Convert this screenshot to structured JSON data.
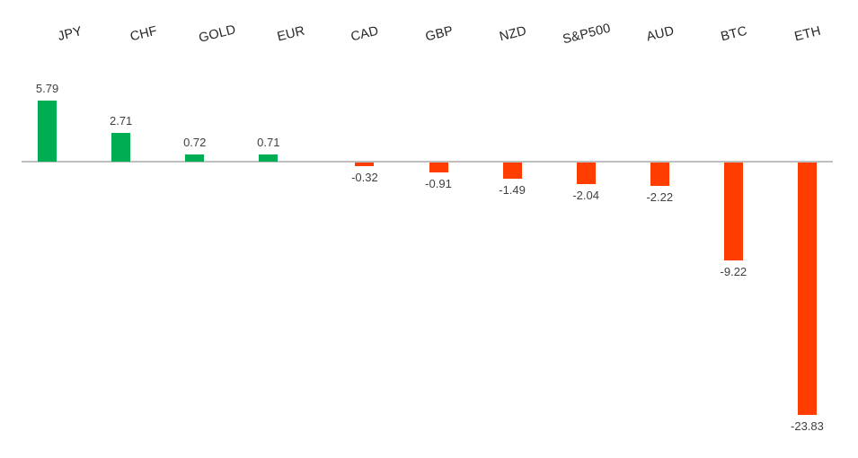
{
  "chart_data": {
    "type": "bar",
    "title": "",
    "xlabel": "",
    "ylabel": "",
    "categories": [
      "JPY",
      "CHF",
      "GOLD",
      "EUR",
      "CAD",
      "GBP",
      "NZD",
      "S&P500",
      "AUD",
      "BTC",
      "ETH"
    ],
    "values": [
      5.79,
      2.71,
      0.72,
      0.71,
      -0.32,
      -0.91,
      -1.49,
      -2.04,
      -2.22,
      -9.22,
      -23.83
    ],
    "value_labels": [
      "5.79",
      "2.71",
      "0.72",
      "0.71",
      "-0.32",
      "-0.91",
      "-1.49",
      "-2.04",
      "-2.22",
      "-9.22",
      "-23.83"
    ],
    "ylim": [
      -26,
      7
    ],
    "baseline": 0,
    "grid": false,
    "legend": "none",
    "category_axis_position": "top",
    "category_label_rotation_deg": -14,
    "data_labels": "outside-end",
    "colors": {
      "positive": "#00AD52",
      "negative": "#FF3D00",
      "axis_line": "#BFBFBF",
      "category_text": "#262626",
      "value_text": "#404040",
      "background": "#FFFFFF"
    }
  }
}
